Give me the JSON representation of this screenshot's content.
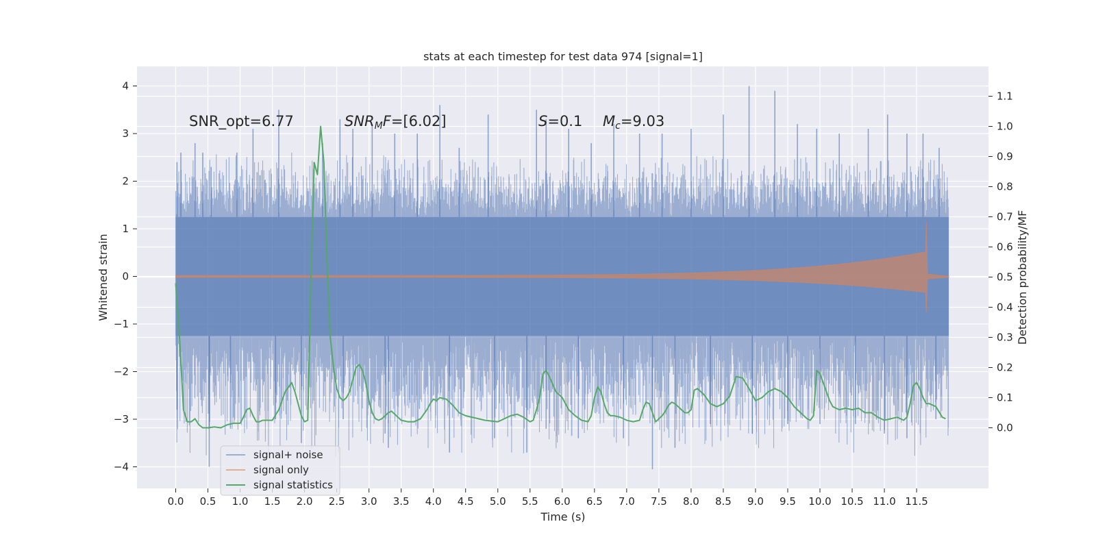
{
  "chart_data": {
    "type": "line",
    "title": "stats at each timestep for test data 974 [signal=1]",
    "xlabel": "Time (s)",
    "ylabel_left": "Whitened strain",
    "ylabel_right": "Detection probability/MF",
    "xlim": [
      -0.6,
      12.6
    ],
    "ylim_left": [
      -4.45,
      4.4
    ],
    "ylim_right": [
      -0.2,
      1.2
    ],
    "x_ticks": [
      "0.0",
      "0.5",
      "1.0",
      "1.5",
      "2.0",
      "2.5",
      "3.0",
      "3.5",
      "4.0",
      "4.5",
      "5.0",
      "5.5",
      "6.0",
      "6.5",
      "7.0",
      "7.5",
      "8.0",
      "8.5",
      "9.0",
      "9.5",
      "10.0",
      "10.5",
      "11.0",
      "11.5"
    ],
    "y_ticks_left": [
      "−4",
      "−3",
      "−2",
      "−1",
      "0",
      "1",
      "2",
      "3",
      "4"
    ],
    "y_ticks_right": [
      "0.0",
      "0.1",
      "0.2",
      "0.3",
      "0.4",
      "0.5",
      "0.6",
      "0.7",
      "0.8",
      "0.9",
      "1.0",
      "1.1"
    ],
    "grid": true,
    "legend_position": "lower-left",
    "colors": {
      "background": "#eaeaf2",
      "grid": "#ffffff",
      "noise": "#4c72b0",
      "signal": "#dd8452",
      "statistics": "#55a868"
    },
    "annotations": {
      "snr_opt": "SNR_opt=6.77",
      "snr_mf": "=[6.02]",
      "s_value": "=0.1",
      "mc_value": "=9.03"
    },
    "series": [
      {
        "name": "signal+ noise",
        "envelope": {
          "x": [
            0.0,
            12.0
          ],
          "core_high": 1.25,
          "core_low": -1.25,
          "typical_peak": 2.4,
          "typical_trough": -2.4
        },
        "peaks": [
          {
            "x": 0.02,
            "y": 2.4
          },
          {
            "x": 0.08,
            "y": 2.6
          },
          {
            "x": 0.3,
            "y": 2.8
          },
          {
            "x": 0.42,
            "y": 2.6
          },
          {
            "x": 0.55,
            "y": 2.3
          },
          {
            "x": 0.95,
            "y": 2.6
          },
          {
            "x": 1.2,
            "y": 3.1
          },
          {
            "x": 1.6,
            "y": 3.5
          },
          {
            "x": 2.28,
            "y": 2.8
          },
          {
            "x": 2.55,
            "y": 3.3
          },
          {
            "x": 2.75,
            "y": 3.1
          },
          {
            "x": 3.05,
            "y": 3.2
          },
          {
            "x": 3.4,
            "y": 3.0
          },
          {
            "x": 3.75,
            "y": 3.0
          },
          {
            "x": 4.1,
            "y": 3.6
          },
          {
            "x": 4.4,
            "y": 2.7
          },
          {
            "x": 4.85,
            "y": 3.4
          },
          {
            "x": 5.6,
            "y": 3.5
          },
          {
            "x": 5.75,
            "y": 3.3
          },
          {
            "x": 6.1,
            "y": 3.1
          },
          {
            "x": 6.45,
            "y": 2.8
          },
          {
            "x": 6.8,
            "y": 3.2
          },
          {
            "x": 7.2,
            "y": 3.0
          },
          {
            "x": 7.55,
            "y": 3.0
          },
          {
            "x": 8.0,
            "y": 3.1
          },
          {
            "x": 8.5,
            "y": 3.4
          },
          {
            "x": 8.9,
            "y": 4.0
          },
          {
            "x": 9.3,
            "y": 3.9
          },
          {
            "x": 9.65,
            "y": 3.2
          },
          {
            "x": 9.95,
            "y": 3.1
          },
          {
            "x": 10.3,
            "y": 3.0
          },
          {
            "x": 10.75,
            "y": 3.1
          },
          {
            "x": 11.05,
            "y": 3.4
          },
          {
            "x": 11.35,
            "y": 3.0
          },
          {
            "x": 11.6,
            "y": 3.0
          },
          {
            "x": 11.85,
            "y": 2.7
          }
        ],
        "troughs": [
          {
            "x": 0.02,
            "y": -2.8
          },
          {
            "x": 0.52,
            "y": -3.2
          },
          {
            "x": 0.52,
            "y": -4.0
          },
          {
            "x": 0.85,
            "y": -3.2
          },
          {
            "x": 1.55,
            "y": -3.0
          },
          {
            "x": 1.95,
            "y": -3.5
          },
          {
            "x": 2.6,
            "y": -3.0
          },
          {
            "x": 3.25,
            "y": -3.3
          },
          {
            "x": 3.3,
            "y": -3.6
          },
          {
            "x": 4.25,
            "y": -3.7
          },
          {
            "x": 4.95,
            "y": -3.4
          },
          {
            "x": 5.45,
            "y": -3.7
          },
          {
            "x": 5.75,
            "y": -3.2
          },
          {
            "x": 6.25,
            "y": -3.4
          },
          {
            "x": 6.95,
            "y": -3.4
          },
          {
            "x": 7.4,
            "y": -4.05
          },
          {
            "x": 7.75,
            "y": -3.6
          },
          {
            "x": 8.3,
            "y": -3.1
          },
          {
            "x": 8.95,
            "y": -3.3
          },
          {
            "x": 9.5,
            "y": -3.1
          },
          {
            "x": 10.0,
            "y": -3.1
          },
          {
            "x": 10.55,
            "y": -3.1
          },
          {
            "x": 11.0,
            "y": -3.3
          },
          {
            "x": 11.35,
            "y": -3.4
          },
          {
            "x": 11.8,
            "y": -3.0
          }
        ]
      },
      {
        "name": "signal only",
        "chirp": {
          "x_start": 0.0,
          "x_merger": 11.65,
          "x_end": 12.0,
          "amp_start": 0.02,
          "amp_merger_high": 1.15,
          "amp_merger_low": -0.75
        }
      },
      {
        "name": "signal statistics",
        "x": [
          0.0,
          0.06,
          0.12,
          0.18,
          0.24,
          0.3,
          0.36,
          0.42,
          0.5,
          0.6,
          0.7,
          0.8,
          0.9,
          1.0,
          1.05,
          1.1,
          1.15,
          1.2,
          1.25,
          1.3,
          1.35,
          1.42,
          1.5,
          1.6,
          1.7,
          1.8,
          1.85,
          1.9,
          1.95,
          2.0,
          2.05,
          2.1,
          2.15,
          2.2,
          2.25,
          2.3,
          2.35,
          2.4,
          2.45,
          2.5,
          2.55,
          2.6,
          2.65,
          2.7,
          2.75,
          2.8,
          2.85,
          2.9,
          2.95,
          3.0,
          3.05,
          3.1,
          3.15,
          3.2,
          3.25,
          3.3,
          3.35,
          3.4,
          3.5,
          3.6,
          3.7,
          3.8,
          3.9,
          3.95,
          4.0,
          4.05,
          4.1,
          4.2,
          4.3,
          4.4,
          4.5,
          4.6,
          4.8,
          5.0,
          5.1,
          5.2,
          5.3,
          5.4,
          5.5,
          5.55,
          5.6,
          5.65,
          5.7,
          5.75,
          5.8,
          5.9,
          6.0,
          6.1,
          6.2,
          6.3,
          6.4,
          6.45,
          6.5,
          6.55,
          6.6,
          6.65,
          6.7,
          6.75,
          6.8,
          6.9,
          7.0,
          7.1,
          7.2,
          7.25,
          7.3,
          7.35,
          7.4,
          7.45,
          7.5,
          7.55,
          7.6,
          7.65,
          7.7,
          7.75,
          7.8,
          7.85,
          7.9,
          7.95,
          8.0,
          8.05,
          8.1,
          8.2,
          8.3,
          8.4,
          8.5,
          8.6,
          8.7,
          8.8,
          8.9,
          9.0,
          9.1,
          9.2,
          9.3,
          9.4,
          9.5,
          9.6,
          9.7,
          9.8,
          9.85,
          9.9,
          9.95,
          10.0,
          10.05,
          10.1,
          10.15,
          10.2,
          10.3,
          10.4,
          10.5,
          10.6,
          10.7,
          10.8,
          10.9,
          11.0,
          11.1,
          11.2,
          11.3,
          11.35,
          11.4,
          11.45,
          11.5,
          11.55,
          11.6,
          11.65,
          11.7,
          11.8,
          11.9,
          11.95
        ],
        "y": [
          0.48,
          0.3,
          0.06,
          0.02,
          0.02,
          0.03,
          0.01,
          0.0,
          0.0,
          0.003,
          0.0,
          0.01,
          0.015,
          0.015,
          0.035,
          0.06,
          0.065,
          0.04,
          0.02,
          0.02,
          0.025,
          0.025,
          0.025,
          0.06,
          0.12,
          0.15,
          0.12,
          0.08,
          0.04,
          0.02,
          0.025,
          0.5,
          0.88,
          0.84,
          1.0,
          0.88,
          0.55,
          0.3,
          0.2,
          0.13,
          0.1,
          0.09,
          0.1,
          0.12,
          0.16,
          0.2,
          0.21,
          0.19,
          0.15,
          0.09,
          0.05,
          0.03,
          0.025,
          0.03,
          0.04,
          0.05,
          0.055,
          0.045,
          0.025,
          0.02,
          0.02,
          0.03,
          0.06,
          0.08,
          0.095,
          0.09,
          0.1,
          0.095,
          0.075,
          0.05,
          0.04,
          0.035,
          0.025,
          0.02,
          0.03,
          0.04,
          0.045,
          0.035,
          0.02,
          0.025,
          0.06,
          0.1,
          0.18,
          0.19,
          0.17,
          0.12,
          0.1,
          0.06,
          0.04,
          0.025,
          0.02,
          0.04,
          0.1,
          0.135,
          0.12,
          0.08,
          0.05,
          0.04,
          0.04,
          0.035,
          0.025,
          0.02,
          0.025,
          0.06,
          0.085,
          0.08,
          0.05,
          0.02,
          0.03,
          0.04,
          0.055,
          0.075,
          0.085,
          0.08,
          0.07,
          0.06,
          0.05,
          0.05,
          0.06,
          0.125,
          0.13,
          0.11,
          0.08,
          0.07,
          0.08,
          0.105,
          0.17,
          0.165,
          0.13,
          0.09,
          0.1,
          0.12,
          0.13,
          0.12,
          0.1,
          0.07,
          0.05,
          0.03,
          0.025,
          0.04,
          0.19,
          0.18,
          0.15,
          0.12,
          0.09,
          0.07,
          0.06,
          0.065,
          0.06,
          0.065,
          0.05,
          0.05,
          0.035,
          0.025,
          0.03,
          0.035,
          0.025,
          0.035,
          0.08,
          0.14,
          0.15,
          0.13,
          0.1,
          0.08,
          0.08,
          0.07,
          0.035,
          0.03
        ]
      }
    ]
  }
}
